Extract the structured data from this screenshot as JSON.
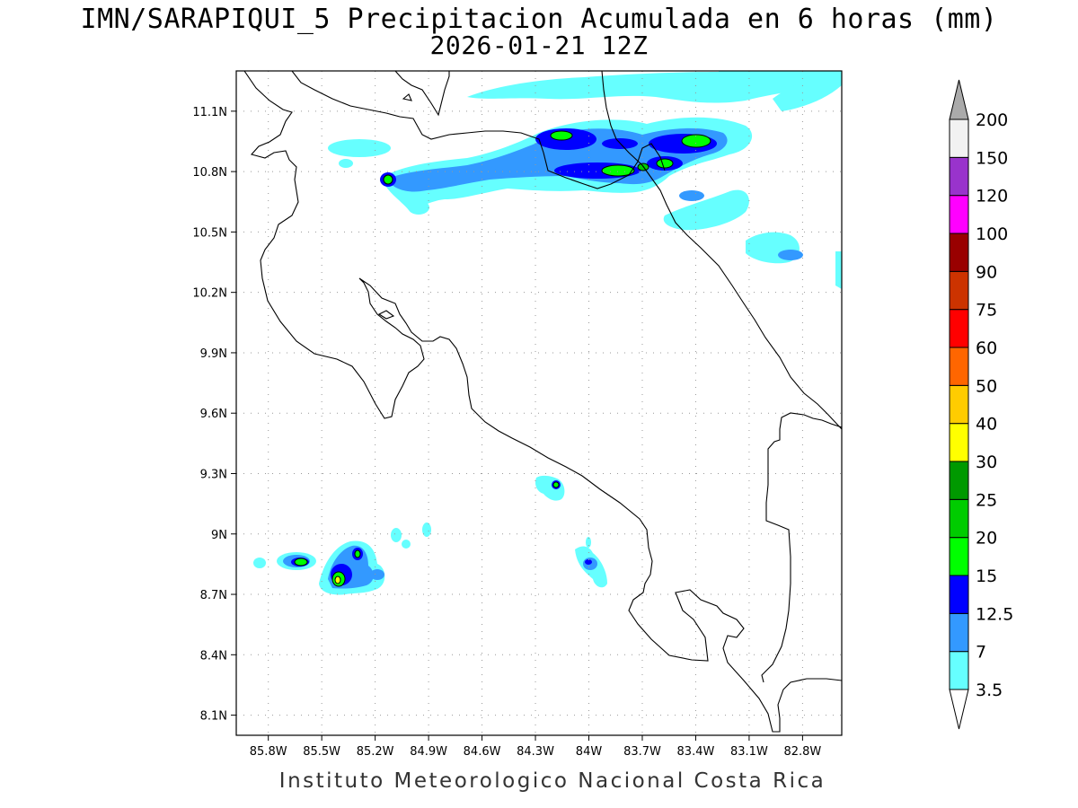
{
  "title_line1": "IMN/SARAPIQUI_5 Precipitacion Acumulada en 6 horas (mm)",
  "title_line2": "2026-01-21 12Z",
  "footer": "Instituto Meteorologico Nacional Costa Rica",
  "map": {
    "lon_range": [
      -85.98,
      -82.58
    ],
    "lat_range": [
      8.0,
      11.3
    ],
    "lat_ticks": [
      {
        "value": 11.1,
        "label": "11.1N"
      },
      {
        "value": 10.8,
        "label": "10.8N"
      },
      {
        "value": 10.5,
        "label": "10.5N"
      },
      {
        "value": 10.2,
        "label": "10.2N"
      },
      {
        "value": 9.9,
        "label": "9.9N"
      },
      {
        "value": 9.6,
        "label": "9.6N"
      },
      {
        "value": 9.3,
        "label": "9.3N"
      },
      {
        "value": 9.0,
        "label": "9N"
      },
      {
        "value": 8.7,
        "label": "8.7N"
      },
      {
        "value": 8.4,
        "label": "8.4N"
      },
      {
        "value": 8.1,
        "label": "8.1N"
      }
    ],
    "lon_ticks": [
      {
        "value": -85.8,
        "label": "85.8W"
      },
      {
        "value": -85.5,
        "label": "85.5W"
      },
      {
        "value": -85.2,
        "label": "85.2W"
      },
      {
        "value": -84.9,
        "label": "84.9W"
      },
      {
        "value": -84.6,
        "label": "84.6W"
      },
      {
        "value": -84.3,
        "label": "84.3W"
      },
      {
        "value": -84.0,
        "label": "84W"
      },
      {
        "value": -83.7,
        "label": "83.7W"
      },
      {
        "value": -83.4,
        "label": "83.4W"
      },
      {
        "value": -83.1,
        "label": "83.1W"
      },
      {
        "value": -82.8,
        "label": "82.8W"
      }
    ],
    "grid": "dotted"
  },
  "colorbar": {
    "levels": [
      "3.5",
      "7",
      "12.5",
      "15",
      "20",
      "25",
      "30",
      "40",
      "50",
      "60",
      "75",
      "90",
      "100",
      "120",
      "150",
      "200"
    ],
    "colors": [
      "#66ffff",
      "#3399ff",
      "#0000ff",
      "#00ff00",
      "#00cc00",
      "#009900",
      "#ffff00",
      "#ffcc00",
      "#ff6600",
      "#ff0000",
      "#cc3300",
      "#990000",
      "#ff00ff",
      "#9933cc",
      "#f2f2f2",
      "#aaaaaa"
    ],
    "under_color": "#ffffff",
    "over_color": "#aaaaaa"
  },
  "precip_cells": [
    {
      "lon": -85.13,
      "lat": 10.76,
      "rx": 0.05,
      "ry": 0.04,
      "level": 3
    },
    {
      "lon": -84.12,
      "lat": 11.01,
      "rx": 0.06,
      "ry": 0.03,
      "level": 3
    },
    {
      "lon": -83.84,
      "lat": 10.81,
      "rx": 0.09,
      "ry": 0.03,
      "level": 3
    },
    {
      "lon": -83.38,
      "lat": 10.97,
      "rx": 0.1,
      "ry": 0.04,
      "level": 3
    },
    {
      "lon": -83.55,
      "lat": 10.84,
      "rx": 0.06,
      "ry": 0.03,
      "level": 3
    },
    {
      "lon": -85.56,
      "lat": 8.87,
      "rx": 0.06,
      "ry": 0.03,
      "level": 3
    },
    {
      "lon": -85.4,
      "lat": 8.77,
      "rx": 0.04,
      "ry": 0.05,
      "level": 5
    },
    {
      "lon": -85.31,
      "lat": 8.91,
      "rx": 0.02,
      "ry": 0.03,
      "level": 3
    },
    {
      "lon": -84.15,
      "lat": 9.24,
      "rx": 0.03,
      "ry": 0.02,
      "level": 3
    }
  ]
}
